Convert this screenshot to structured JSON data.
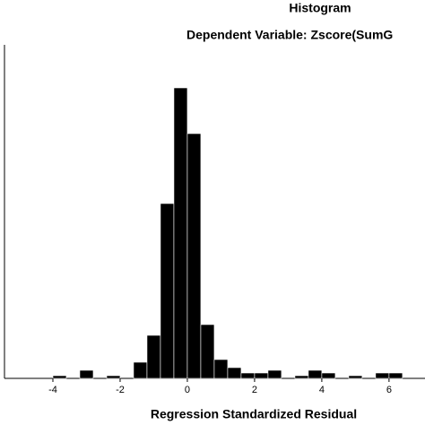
{
  "chart_data": {
    "type": "histogram",
    "title": "Histogram",
    "subtitle": "Dependent Variable: Zscore(SumG",
    "x_label": "Regression Standardized Residual",
    "bins": [
      -4.0,
      -3.6,
      -3.2,
      -2.8,
      -2.4,
      -2.0,
      -1.6,
      -1.2,
      -0.8,
      -0.4,
      0.0,
      0.4,
      0.8,
      1.2,
      1.6,
      2.0,
      2.4,
      2.8,
      3.2,
      3.6,
      4.0,
      4.4,
      4.8,
      5.2,
      5.6,
      6.0,
      6.4
    ],
    "values": [
      1,
      0,
      3,
      0,
      1,
      0,
      6,
      16,
      65,
      108,
      91,
      20,
      7,
      4,
      2,
      2,
      3,
      0,
      1,
      3,
      2,
      0,
      1,
      0,
      2,
      2
    ],
    "color": "#000000",
    "xlim": [
      -5.44,
      7.07
    ],
    "xticks": [
      -4,
      -2,
      0,
      2,
      4,
      6
    ],
    "ylim": [
      0,
      124
    ]
  }
}
